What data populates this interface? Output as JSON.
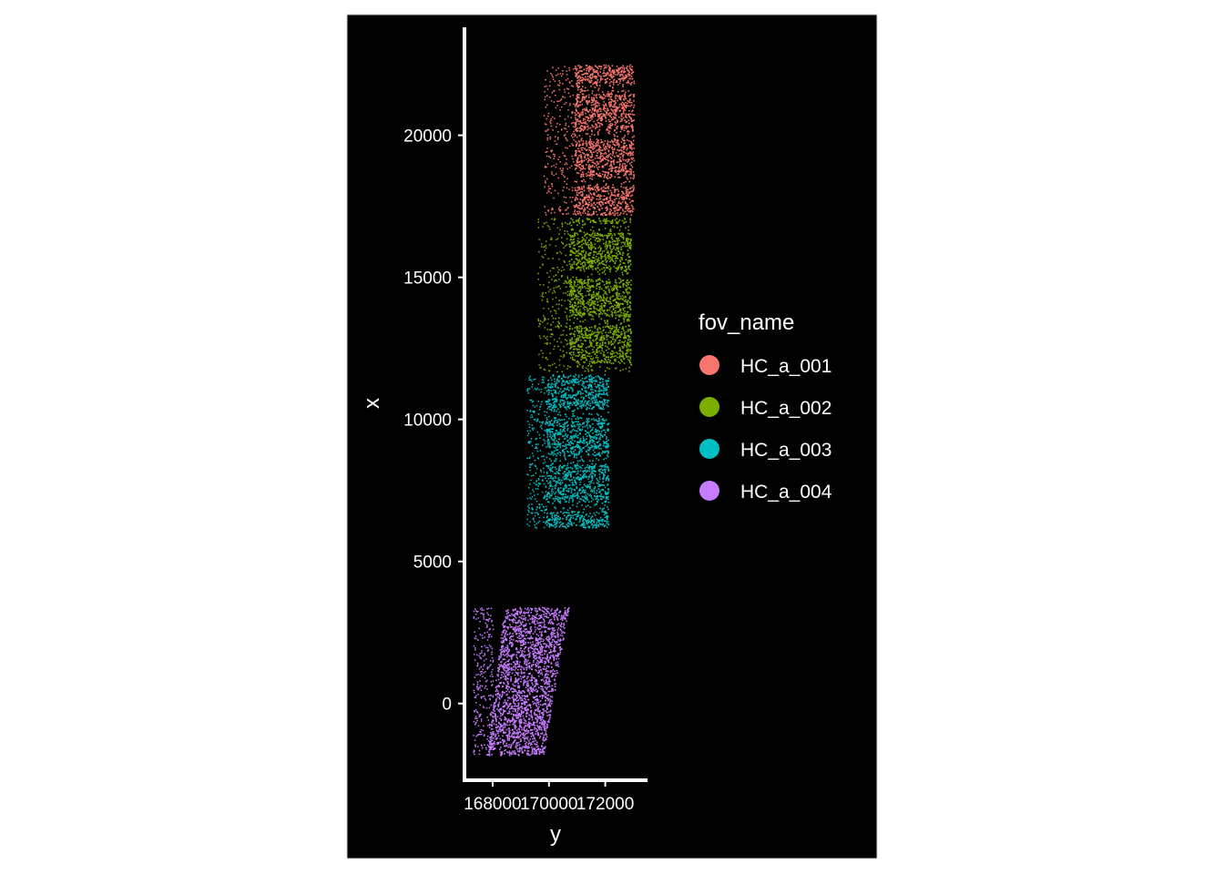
{
  "chart_data": {
    "type": "scatter",
    "xlabel": "y",
    "ylabel": "x",
    "xlim": [
      167000,
      173500
    ],
    "ylim": [
      -2700,
      23800
    ],
    "x_ticks": [
      168000,
      170000,
      172000
    ],
    "x_tick_labels": [
      "168000",
      "170000",
      "172000"
    ],
    "y_ticks": [
      0,
      5000,
      10000,
      15000,
      20000
    ],
    "y_tick_labels": [
      "0",
      "5000",
      "10000",
      "15000",
      "20000"
    ],
    "grid": false,
    "background": "#000000",
    "legend": {
      "title": "fov_name",
      "placement": "right",
      "entries": [
        "HC_a_001",
        "HC_a_002",
        "HC_a_003",
        "HC_a_004"
      ]
    },
    "series": [
      {
        "name": "HC_a_001",
        "color": "#F8766D",
        "region": {
          "y_range": [
            17200,
            22500
          ],
          "dense_x": [
            170900,
            173000
          ],
          "sparse_x": [
            169800,
            170900
          ]
        }
      },
      {
        "name": "HC_a_002",
        "color": "#7CAE00",
        "region": {
          "y_range": [
            11700,
            17100
          ],
          "dense_x": [
            170700,
            172900
          ],
          "sparse_x": [
            169600,
            170700
          ]
        }
      },
      {
        "name": "HC_a_003",
        "color": "#00BFC4",
        "region": {
          "y_range": [
            6200,
            11600
          ],
          "dense_x": [
            169900,
            172100
          ],
          "sparse_x": [
            169200,
            169900
          ]
        }
      },
      {
        "name": "HC_a_004",
        "color": "#C77CFF",
        "region": {
          "y_range": [
            -1800,
            3400
          ],
          "dense_x": [
            168000,
            170700
          ],
          "sparse_x": [
            167300,
            168000
          ]
        }
      }
    ]
  }
}
